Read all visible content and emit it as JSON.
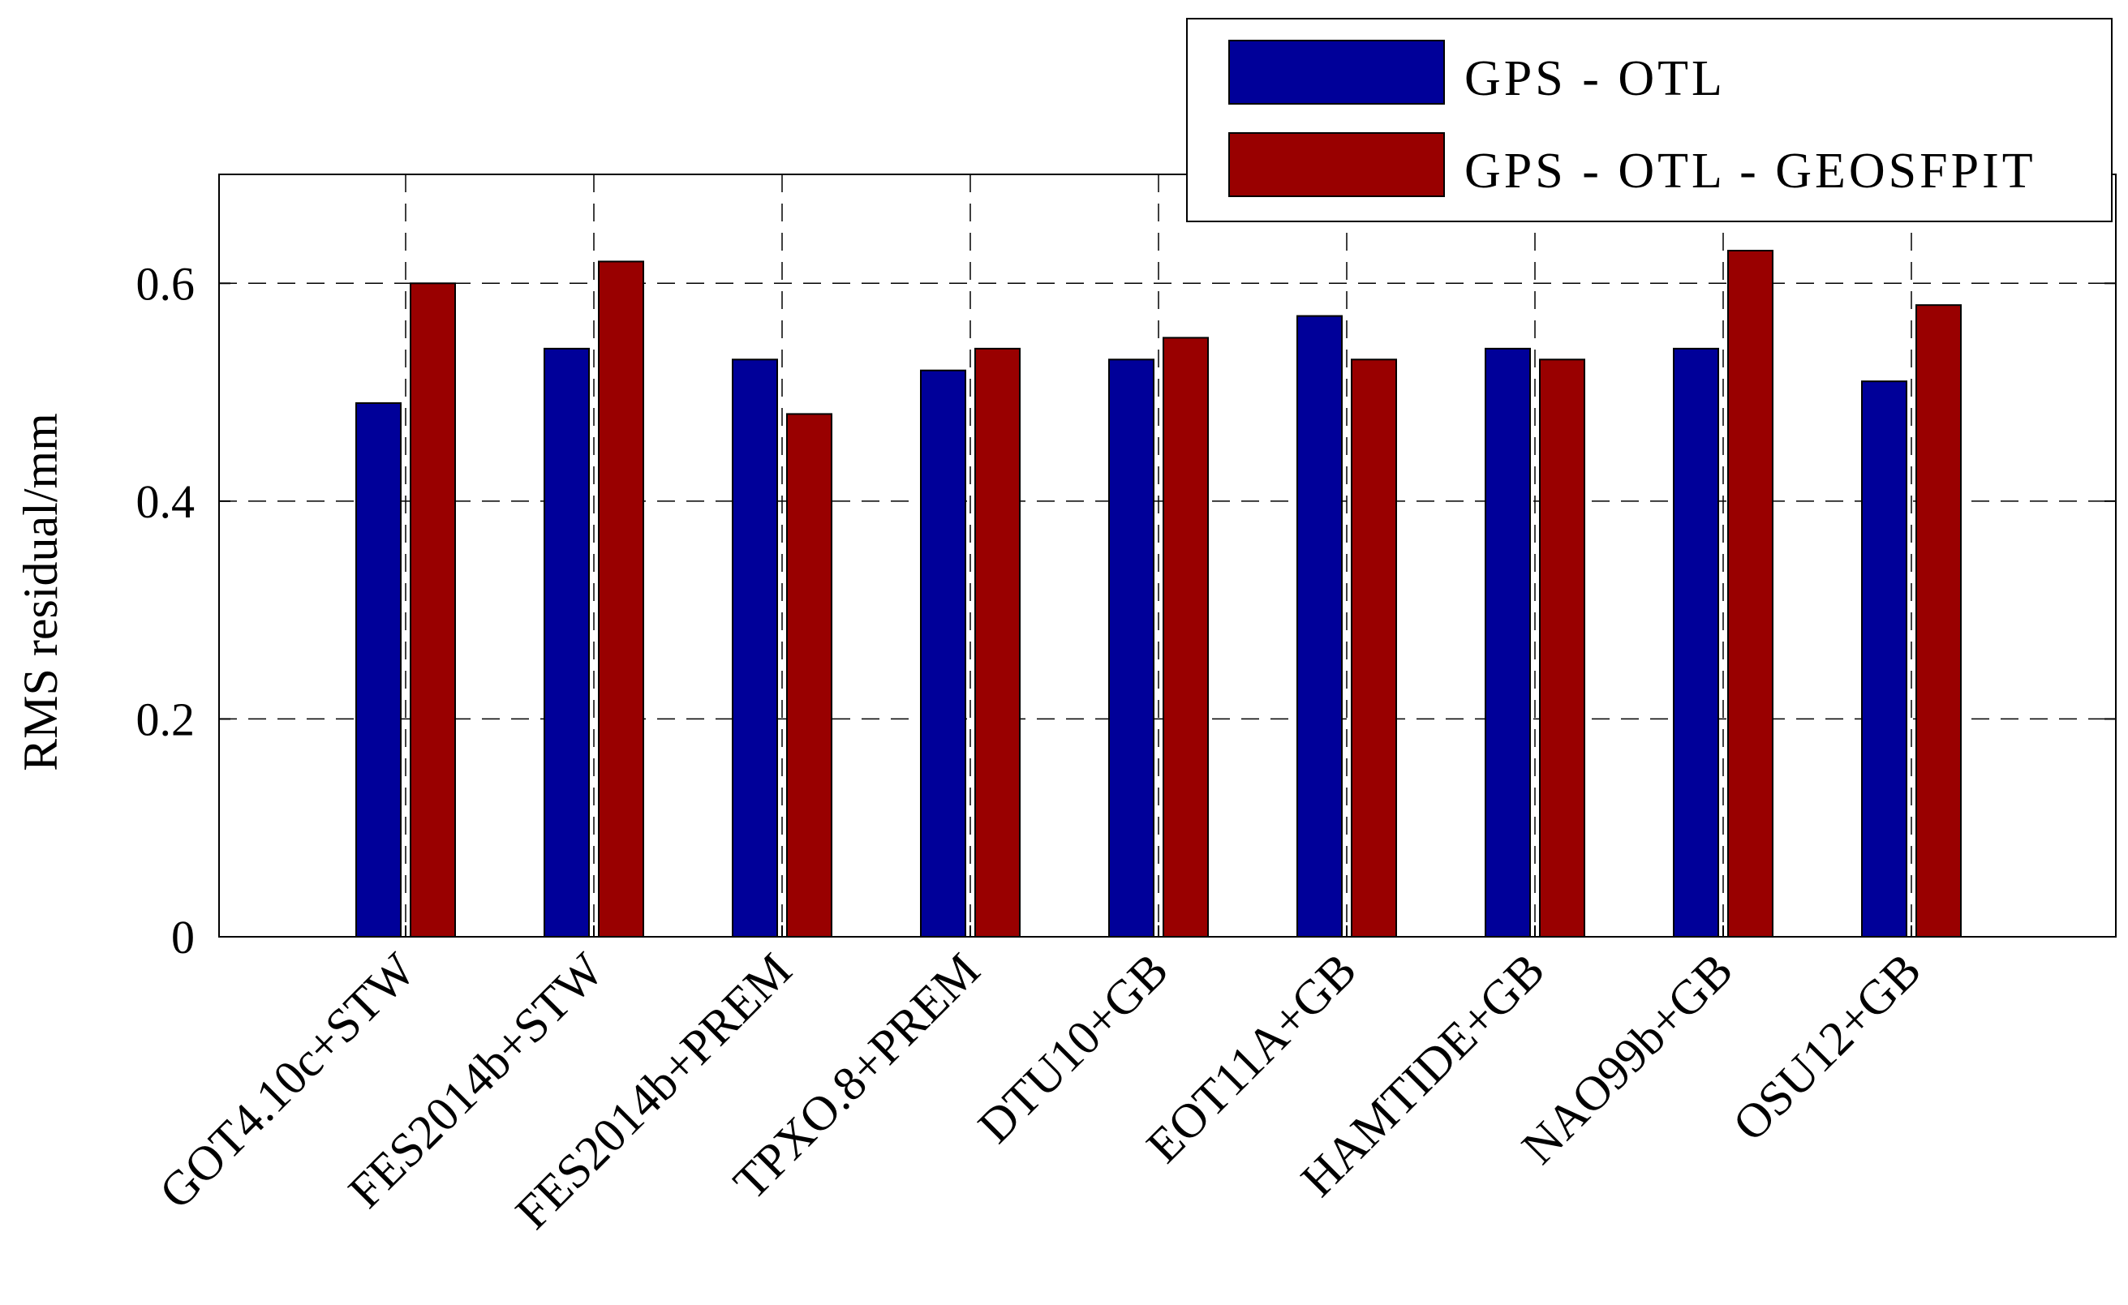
{
  "chart_data": {
    "type": "bar",
    "title": "",
    "xlabel": "",
    "ylabel": "RMS residual/mm",
    "ylim": [
      0,
      0.7
    ],
    "yticks": [
      0,
      0.2,
      0.4,
      0.6
    ],
    "ytick_labels": [
      "0",
      "0.2",
      "0.4",
      "0.6"
    ],
    "grid": true,
    "legend_position": "top-right",
    "categories": [
      "GOT4.10c+STW",
      "FES2014b+STW",
      "FES2014b+PREM",
      "TPXO.8+PREM",
      "DTU10+GB",
      "EOT11A+GB",
      "HAMTIDE+GB",
      "NAO99b+GB",
      "OSU12+GB"
    ],
    "series": [
      {
        "name": "GPS - OTL",
        "color": "#000099",
        "values": [
          0.49,
          0.54,
          0.53,
          0.52,
          0.53,
          0.57,
          0.54,
          0.54,
          0.51
        ]
      },
      {
        "name": "GPS - OTL - GEOSFPIT",
        "color": "#990000",
        "values": [
          0.6,
          0.62,
          0.48,
          0.54,
          0.55,
          0.53,
          0.53,
          0.63,
          0.58
        ]
      }
    ]
  }
}
